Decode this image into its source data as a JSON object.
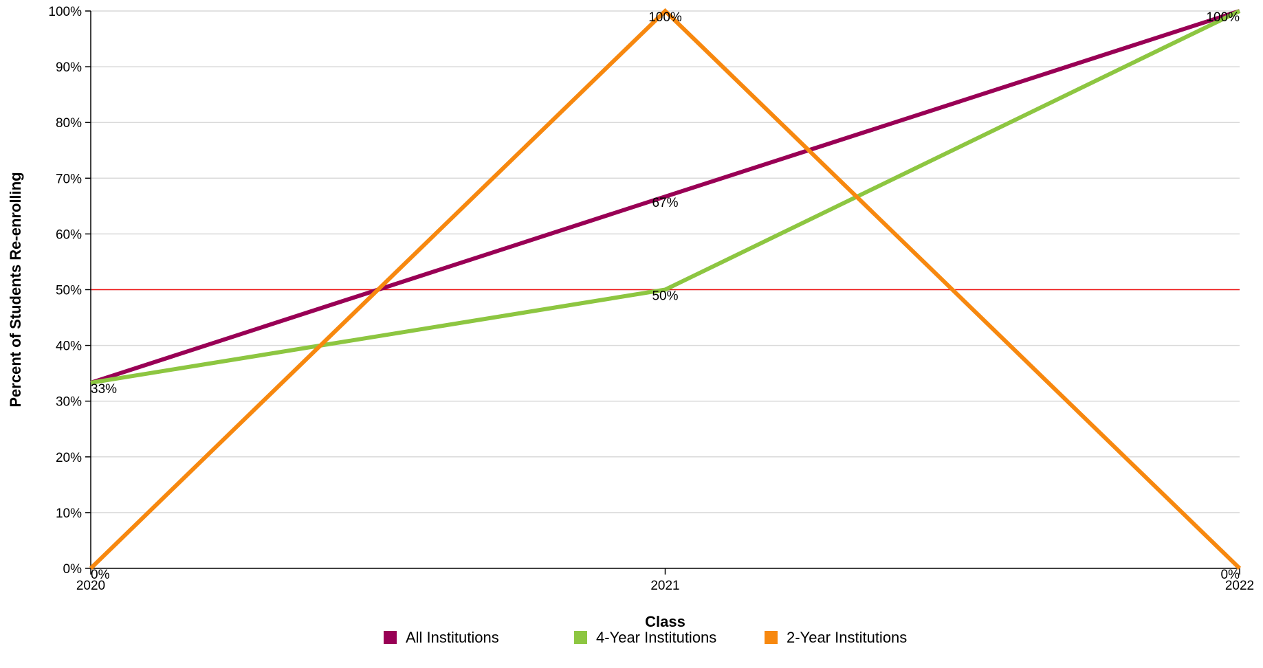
{
  "chart_data": {
    "type": "line",
    "categories": [
      "2020",
      "2021",
      "2022"
    ],
    "xlabel": "Class",
    "ylabel": "Percent of Students Re-enrolling",
    "ylim": [
      0,
      100
    ],
    "yticks": [
      "0%",
      "10%",
      "20%",
      "30%",
      "40%",
      "50%",
      "60%",
      "70%",
      "80%",
      "90%",
      "100%"
    ],
    "grid": true,
    "legend_position": "bottom",
    "reference_line": {
      "value": 50,
      "color": "#ee1111"
    },
    "series": [
      {
        "name": "All Institutions",
        "color": "#990055",
        "values": [
          33.3,
          66.7,
          100
        ],
        "labels": [
          "",
          "67%",
          ""
        ]
      },
      {
        "name": "4-Year Institutions",
        "color": "#8dc641",
        "values": [
          33.3,
          50,
          100
        ],
        "labels": [
          "33%",
          "50%",
          "100%"
        ]
      },
      {
        "name": "2-Year Institutions",
        "color": "#f7880f",
        "values": [
          0,
          100,
          0
        ],
        "labels": [
          "0%",
          "100%",
          "0%"
        ]
      }
    ]
  }
}
